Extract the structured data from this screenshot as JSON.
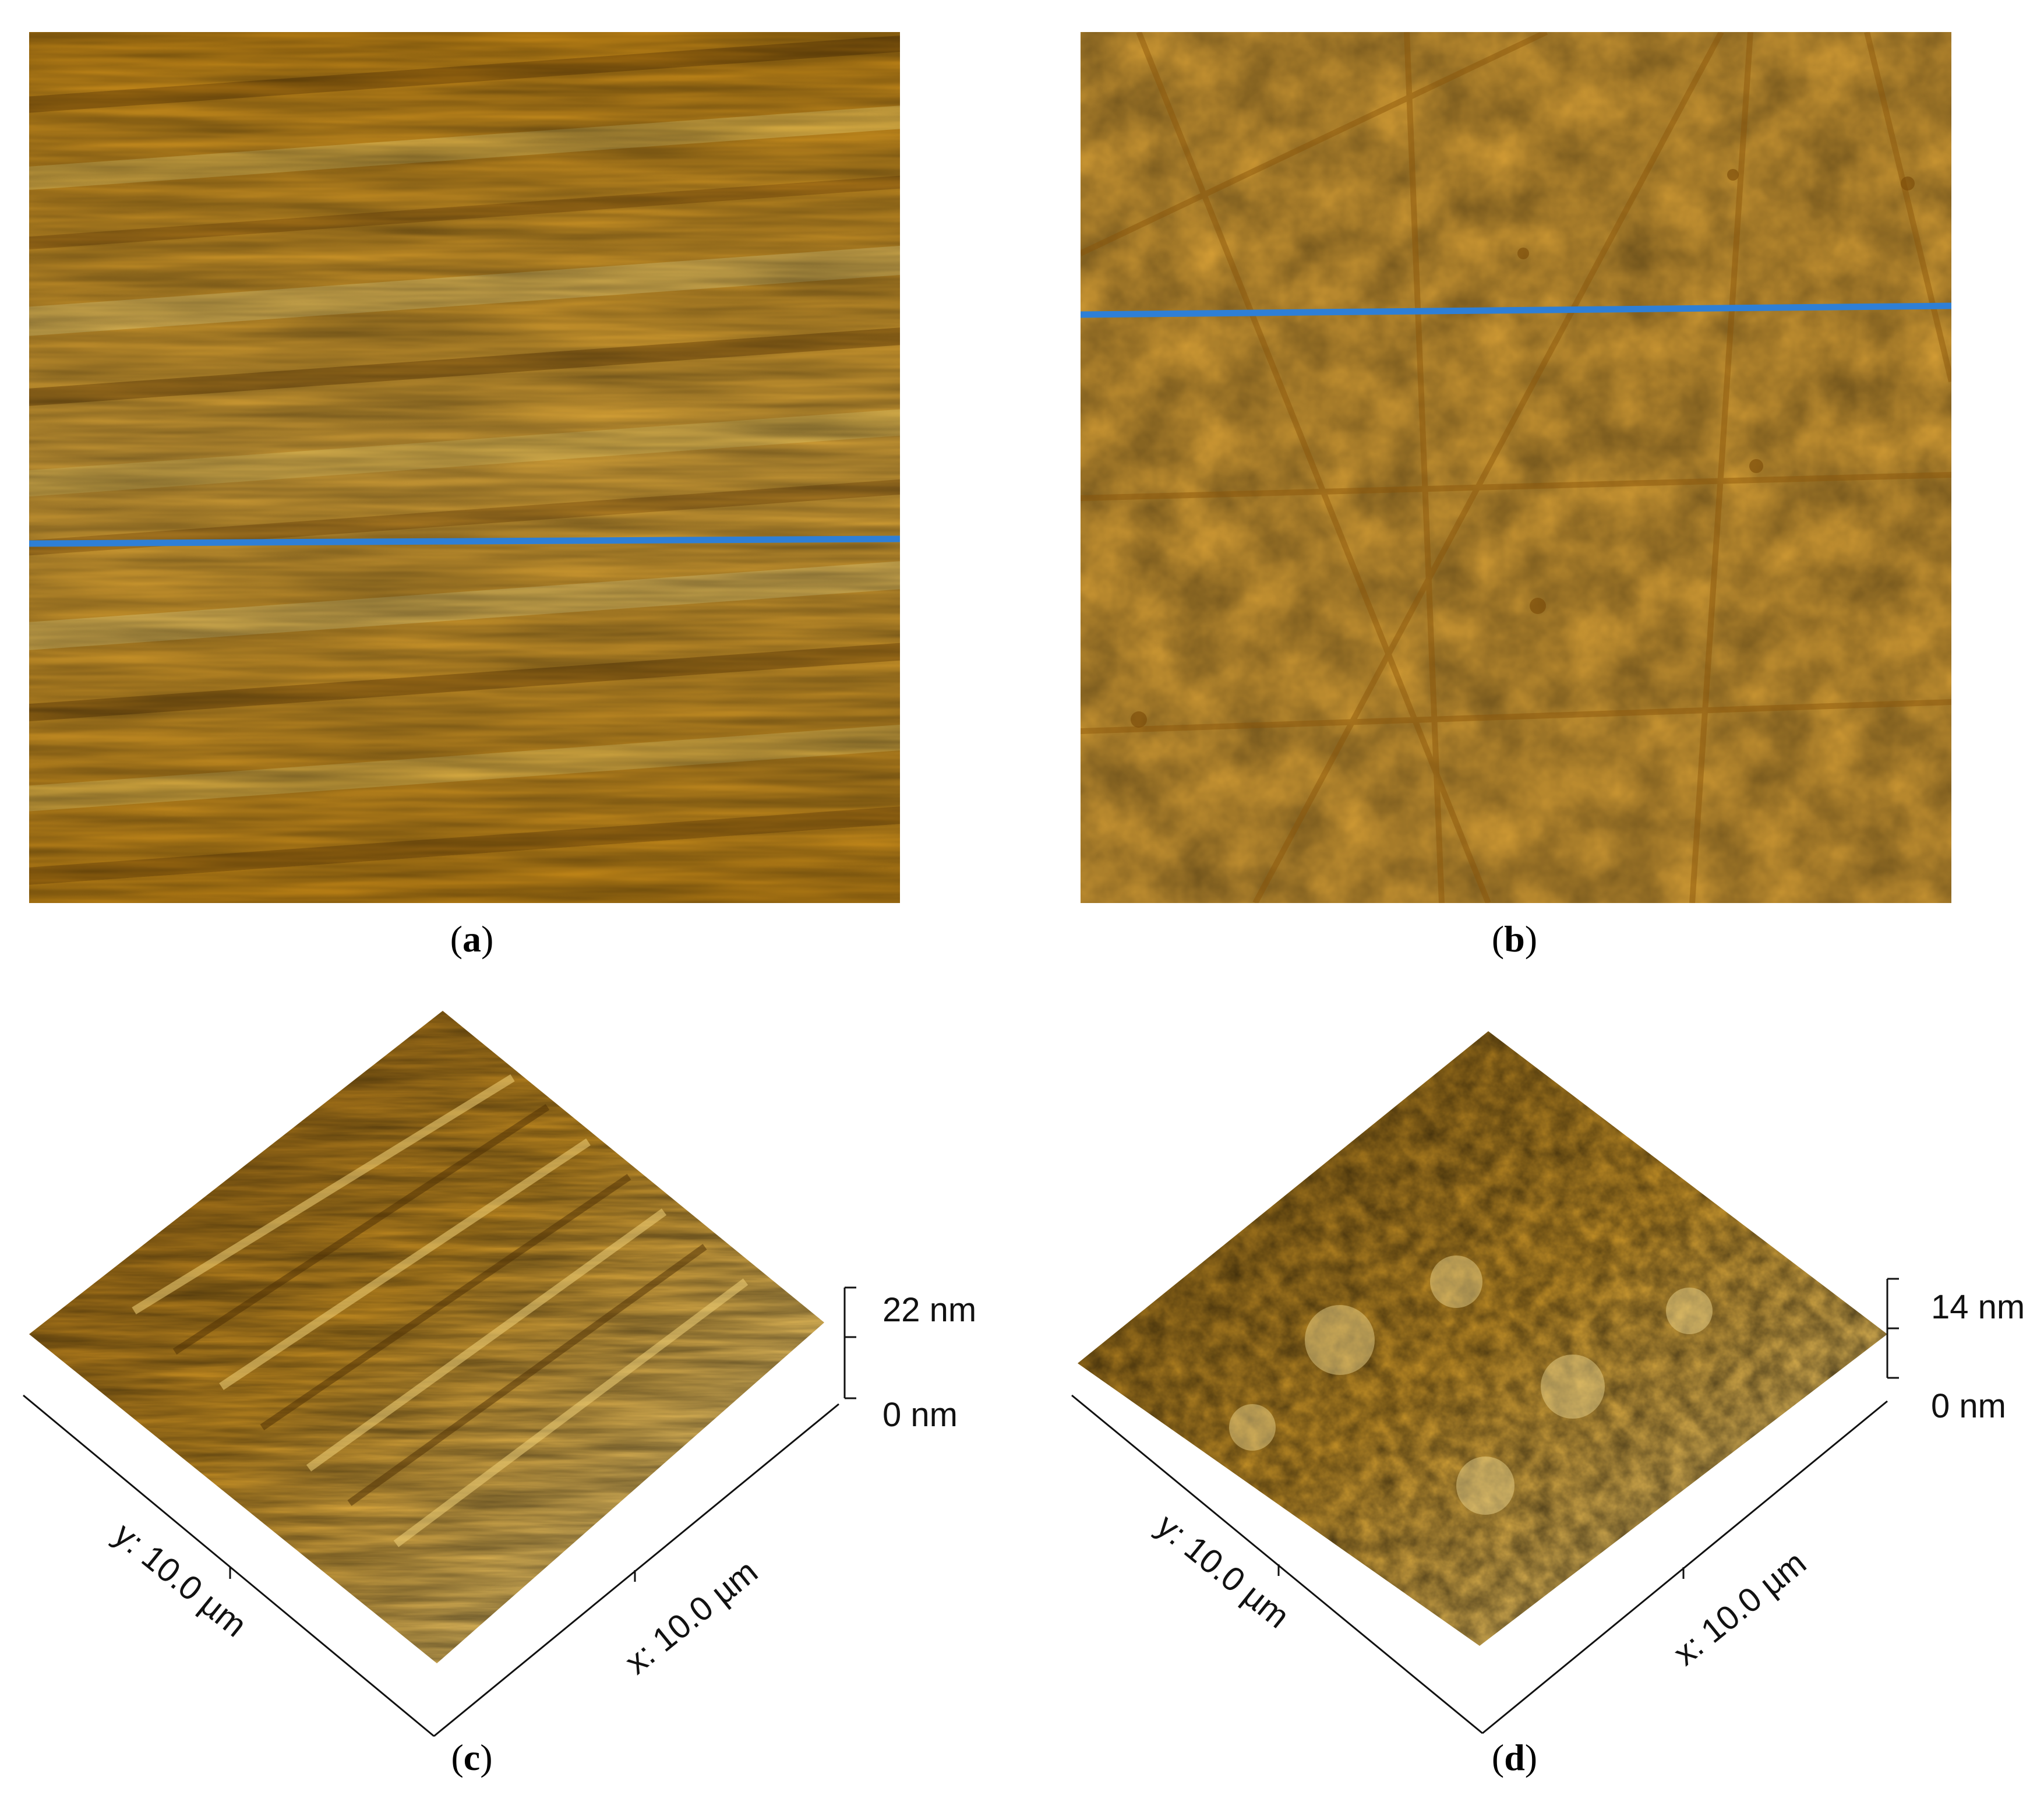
{
  "panels": [
    {
      "id": "a",
      "caption": "a",
      "profile_line_color": "#2e7fd6"
    },
    {
      "id": "b",
      "caption": "b",
      "profile_line_color": "#2e7fd6"
    },
    {
      "id": "c",
      "caption": "c",
      "z_max_label": "22 nm",
      "z_min_label": "0 nm",
      "x_axis_label": "x: 10.0 µm",
      "y_axis_label": "y: 10.0 µm"
    },
    {
      "id": "d",
      "caption": "d",
      "z_max_label": "14 nm",
      "z_min_label": "0 nm",
      "x_axis_label": "x: 10.0 µm",
      "y_axis_label": "y: 10.0 µm"
    }
  ],
  "colors": {
    "height_dark": "#7a4a06",
    "height_mid": "#c98a16",
    "height_light": "#f3d36a",
    "profile_line": "#2e7fd6"
  }
}
